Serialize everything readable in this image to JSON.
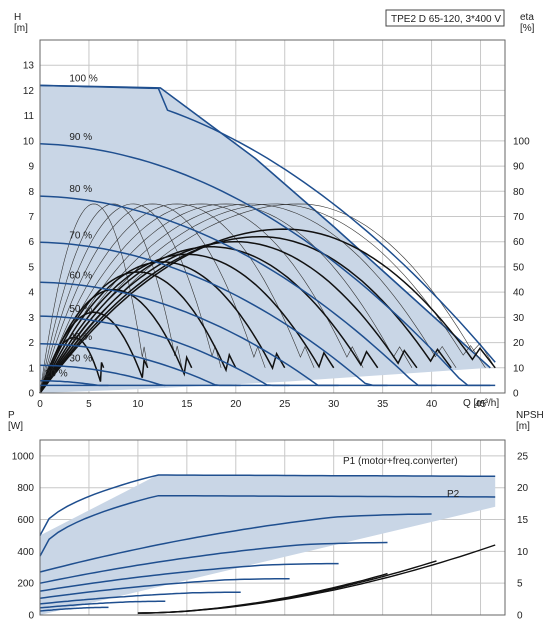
{
  "chart_data": [
    {
      "type": "line",
      "title": "TPE2 D 65-120, 3*400 V",
      "xlabel": "Q [m³/h]",
      "ylabel": "H\n[m]",
      "y2label": "eta\n[%]",
      "xlim": [
        0,
        47.5
      ],
      "ylim": [
        0,
        14
      ],
      "y2lim": [
        0,
        140
      ],
      "x_ticks": [
        0,
        5,
        10,
        15,
        20,
        25,
        30,
        35,
        40,
        45
      ],
      "y_ticks": [
        0,
        1,
        2,
        3,
        4,
        5,
        6,
        7,
        8,
        9,
        10,
        11,
        12,
        13
      ],
      "y2_ticks": [
        0,
        10,
        20,
        30,
        40,
        50,
        60,
        70,
        80,
        90,
        100
      ],
      "grid": true,
      "operating_area": [
        [
          0,
          12.2
        ],
        [
          12.3,
          12.1
        ],
        [
          22,
          9.3
        ],
        [
          30,
          6.6
        ],
        [
          46,
          1.0
        ],
        [
          25,
          0.45
        ],
        [
          10,
          0.15
        ],
        [
          0,
          0
        ]
      ],
      "head_curves": [
        {
          "name": "100 %",
          "speed": 1.0,
          "qmax": 46.5
        },
        {
          "name": "90 %",
          "speed": 0.9,
          "qmax": 46.5
        },
        {
          "name": "80 %",
          "speed": 0.8,
          "qmax": 46.0
        },
        {
          "name": "70 %",
          "speed": 0.7,
          "qmax": 40.5
        },
        {
          "name": "60 %",
          "speed": 0.6,
          "qmax": 35.5
        },
        {
          "name": "50 %",
          "speed": 0.5,
          "qmax": 30.5
        },
        {
          "name": "40 %",
          "speed": 0.4,
          "qmax": 25.5
        },
        {
          "name": "30 %",
          "speed": 0.3,
          "qmax": 20.5
        },
        {
          "name": "20 %",
          "speed": 0.2,
          "qmax": 12.8
        },
        {
          "name": "",
          "speed": 0.1,
          "qmax": 7.0
        }
      ],
      "efficiency_curves": [
        {
          "peak_q": 25.0,
          "peak_eta": 65,
          "end_q": 46.5
        },
        {
          "peak_q": 22.5,
          "peak_eta": 62,
          "end_q": 42.0
        },
        {
          "peak_q": 20.0,
          "peak_eta": 60,
          "end_q": 38.5
        },
        {
          "peak_q": 17.5,
          "peak_eta": 58,
          "end_q": 34.5
        },
        {
          "peak_q": 15.0,
          "peak_eta": 55,
          "end_q": 30.0
        },
        {
          "peak_q": 12.5,
          "peak_eta": 52,
          "end_q": 25.0
        },
        {
          "peak_q": 10.0,
          "peak_eta": 48,
          "end_q": 20.0
        },
        {
          "peak_q": 7.5,
          "peak_eta": 41,
          "end_q": 15.5
        },
        {
          "peak_q": 5.5,
          "peak_eta": 32,
          "end_q": 11.0
        },
        {
          "peak_q": 3.5,
          "peak_eta": 22,
          "end_q": 6.5
        }
      ],
      "efficiency_thin_curves": [
        {
          "peak_q": 26.5,
          "peak_eta": 75,
          "end_q": 46.5
        },
        {
          "peak_q": 24.0,
          "peak_eta": 75,
          "end_q": 45.5
        },
        {
          "peak_q": 21.5,
          "peak_eta": 75,
          "end_q": 42.5
        },
        {
          "peak_q": 19.0,
          "peak_eta": 75,
          "end_q": 38.0
        },
        {
          "peak_q": 16.5,
          "peak_eta": 75,
          "end_q": 33.0
        },
        {
          "peak_q": 14.0,
          "peak_eta": 75,
          "end_q": 28.0
        },
        {
          "peak_q": 11.5,
          "peak_eta": 75,
          "end_q": 23.0
        },
        {
          "peak_q": 9.5,
          "peak_eta": 75,
          "end_q": 18.5
        },
        {
          "peak_q": 7.5,
          "peak_eta": 75,
          "end_q": 14.5
        },
        {
          "peak_q": 5.5,
          "peak_eta": 75,
          "end_q": 11.0
        }
      ]
    },
    {
      "type": "line",
      "xlabel": "",
      "ylabel": "P\n[W]",
      "y2label": "NPSH\n[m]",
      "xlim": [
        0,
        47.5
      ],
      "ylim": [
        0,
        1100
      ],
      "y2lim": [
        0,
        27.5
      ],
      "y_ticks": [
        0,
        200,
        400,
        600,
        800,
        1000
      ],
      "y2_ticks": [
        0,
        5,
        10,
        15,
        20,
        25
      ],
      "grid": true,
      "series_labels": [
        "P1 (motor+freq.converter)",
        "P2"
      ],
      "power_area": [
        [
          0,
          500
        ],
        [
          12,
          880
        ],
        [
          46.5,
          870
        ],
        [
          46.5,
          680
        ],
        [
          0,
          0
        ]
      ],
      "p1_curves": [
        {
          "speed": 1.0,
          "p0": 500,
          "pmax": 880,
          "qmax": 46.5,
          "plateau": true
        },
        {
          "speed": 0.9,
          "p0": 370,
          "pmax": 750,
          "qmax": 46.5,
          "plateau": true
        },
        {
          "speed": 0.8,
          "p0": 270,
          "pmax": 670,
          "qmax": 40.0,
          "plateau": false
        },
        {
          "speed": 0.7,
          "p0": 200,
          "pmax": 480,
          "qmax": 35.5,
          "plateau": false
        },
        {
          "speed": 0.6,
          "p0": 150,
          "pmax": 340,
          "qmax": 30.5,
          "plateau": false
        },
        {
          "speed": 0.5,
          "p0": 105,
          "pmax": 240,
          "qmax": 25.5,
          "plateau": false
        },
        {
          "speed": 0.4,
          "p0": 70,
          "pmax": 150,
          "qmax": 20.5,
          "plateau": false
        },
        {
          "speed": 0.3,
          "p0": 45,
          "pmax": 90,
          "qmax": 12.8,
          "plateau": false
        },
        {
          "speed": 0.2,
          "p0": 25,
          "pmax": 50,
          "qmax": 7.0,
          "plateau": false
        }
      ],
      "npsh_curves": [
        {
          "q_start": 10,
          "q_end": 46.5,
          "v_start": 0.3,
          "v_end": 11.0
        },
        {
          "q_start": 10,
          "q_end": 40.5,
          "v_start": 0.3,
          "v_end": 8.5
        },
        {
          "q_start": 10,
          "q_end": 35.5,
          "v_start": 0.3,
          "v_end": 6.5
        }
      ]
    }
  ]
}
